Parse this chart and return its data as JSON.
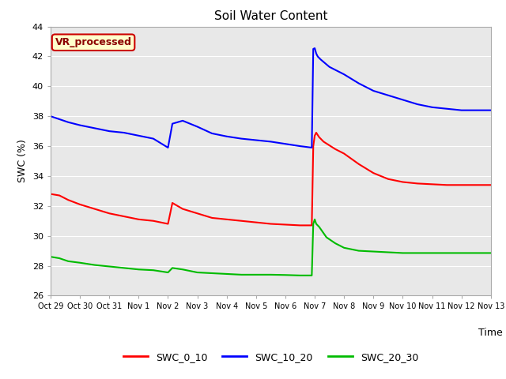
{
  "title": "Soil Water Content",
  "xlabel": "Time",
  "ylabel": "SWC (%)",
  "ylim": [
    26,
    44
  ],
  "yticks": [
    26,
    28,
    30,
    32,
    34,
    36,
    38,
    40,
    42,
    44
  ],
  "figure_bg": "#ffffff",
  "plot_bg": "#e8e8e8",
  "legend_label": "VR_processed",
  "legend_box_color": "#ffffcc",
  "legend_box_edge": "#cc0000",
  "series_colors": {
    "SWC_0_10": "#ff0000",
    "SWC_10_20": "#0000ff",
    "SWC_20_30": "#00bb00"
  },
  "xtick_labels": [
    "Oct 29",
    "Oct 30",
    "Oct 31",
    "Nov 1",
    "Nov 2",
    "Nov 3",
    "Nov 4",
    "Nov 5",
    "Nov 6",
    "Nov 7",
    "Nov 8",
    "Nov 9",
    "Nov 10",
    "Nov 11",
    "Nov 12",
    "Nov 13"
  ],
  "x_positions": [
    0,
    1,
    2,
    3,
    4,
    5,
    6,
    7,
    8,
    9,
    10,
    11,
    12,
    13,
    14,
    15
  ],
  "SWC_0_10_x": [
    0.0,
    0.3,
    0.6,
    1.0,
    1.5,
    2.0,
    2.5,
    3.0,
    3.5,
    4.0,
    4.15,
    4.5,
    5.0,
    5.5,
    6.0,
    6.5,
    7.0,
    7.5,
    8.0,
    8.5,
    8.9,
    8.95,
    9.0,
    9.05,
    9.15,
    9.3,
    9.7,
    10.0,
    10.5,
    11.0,
    11.5,
    12.0,
    12.5,
    13.0,
    13.5,
    14.0,
    14.5,
    15.0
  ],
  "SWC_0_10_y": [
    32.8,
    32.7,
    32.4,
    32.1,
    31.8,
    31.5,
    31.3,
    31.1,
    31.0,
    30.8,
    32.2,
    31.8,
    31.5,
    31.2,
    31.1,
    31.0,
    30.9,
    30.8,
    30.75,
    30.7,
    30.7,
    36.0,
    36.7,
    36.9,
    36.6,
    36.3,
    35.8,
    35.5,
    34.8,
    34.2,
    33.8,
    33.6,
    33.5,
    33.45,
    33.4,
    33.4,
    33.4,
    33.4
  ],
  "SWC_10_20_x": [
    0.0,
    0.3,
    0.6,
    1.0,
    1.5,
    2.0,
    2.5,
    3.0,
    3.5,
    4.0,
    4.15,
    4.5,
    5.0,
    5.5,
    6.0,
    6.5,
    7.0,
    7.5,
    8.0,
    8.5,
    8.9,
    8.95,
    9.0,
    9.05,
    9.1,
    9.2,
    9.5,
    10.0,
    10.5,
    11.0,
    11.5,
    12.0,
    12.5,
    13.0,
    13.5,
    14.0,
    14.5,
    15.0
  ],
  "SWC_10_20_y": [
    38.0,
    37.8,
    37.6,
    37.4,
    37.2,
    37.0,
    36.9,
    36.7,
    36.5,
    35.9,
    37.5,
    37.7,
    37.3,
    36.85,
    36.65,
    36.5,
    36.4,
    36.3,
    36.15,
    36.0,
    35.9,
    42.5,
    42.55,
    42.2,
    42.0,
    41.8,
    41.3,
    40.8,
    40.2,
    39.7,
    39.4,
    39.1,
    38.8,
    38.6,
    38.5,
    38.4,
    38.4,
    38.4
  ],
  "SWC_20_30_x": [
    0.0,
    0.3,
    0.6,
    1.0,
    1.5,
    2.0,
    2.5,
    3.0,
    3.5,
    4.0,
    4.15,
    4.5,
    5.0,
    5.5,
    6.0,
    6.5,
    7.0,
    7.5,
    8.0,
    8.5,
    8.9,
    8.95,
    9.0,
    9.05,
    9.15,
    9.4,
    9.7,
    10.0,
    10.5,
    11.0,
    11.5,
    12.0,
    12.5,
    13.0,
    13.5,
    14.0,
    14.5,
    15.0
  ],
  "SWC_20_30_y": [
    28.6,
    28.5,
    28.3,
    28.2,
    28.05,
    27.95,
    27.85,
    27.75,
    27.7,
    27.55,
    27.85,
    27.75,
    27.55,
    27.5,
    27.45,
    27.4,
    27.4,
    27.4,
    27.38,
    27.35,
    27.35,
    30.8,
    31.1,
    30.8,
    30.6,
    29.9,
    29.5,
    29.2,
    29.0,
    28.95,
    28.9,
    28.85,
    28.85,
    28.85,
    28.85,
    28.85,
    28.85,
    28.85
  ]
}
